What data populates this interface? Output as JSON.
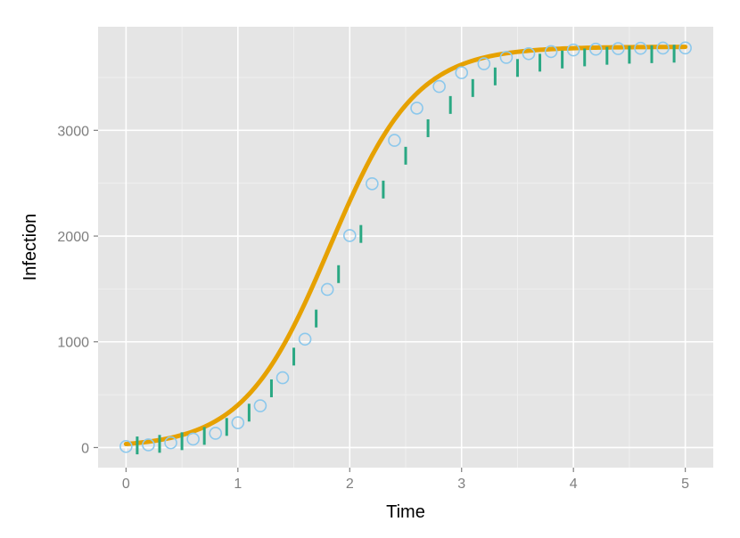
{
  "chart_data": {
    "type": "scatter",
    "title": "",
    "xlabel": "Time",
    "ylabel": "Infection",
    "xlim": [
      -0.25,
      5.25
    ],
    "ylim": [
      -190,
      3980
    ],
    "x_ticks": [
      0,
      1,
      2,
      3,
      4,
      5
    ],
    "x_tick_labels": [
      "0",
      "1",
      "2",
      "3",
      "4",
      "5"
    ],
    "y_ticks": [
      0,
      1000,
      2000,
      3000
    ],
    "y_tick_labels": [
      "0",
      "1000",
      "2000",
      "3000"
    ],
    "grid": true,
    "legend": "none",
    "series": [
      {
        "kind": "circles",
        "color": "#8cc8ec",
        "x": [
          0,
          0.2,
          0.4,
          0.6,
          0.8,
          1.0,
          1.2,
          1.4,
          1.6,
          1.8,
          2.0,
          2.2,
          2.4,
          2.6,
          2.8,
          3.0,
          3.2,
          3.4,
          3.6,
          3.8,
          4.0,
          4.2,
          4.4,
          4.6,
          4.8,
          5.0
        ],
        "y": [
          10,
          25,
          45,
          80,
          135,
          235,
          395,
          660,
          1025,
          1495,
          2005,
          2495,
          2905,
          3210,
          3415,
          3545,
          3630,
          3690,
          3725,
          3745,
          3760,
          3768,
          3773,
          3776,
          3778,
          3779
        ]
      },
      {
        "kind": "vertical-ticks",
        "color": "#2aa883",
        "x": [
          0.1,
          0.3,
          0.5,
          0.7,
          0.9,
          1.1,
          1.3,
          1.5,
          1.7,
          1.9,
          2.1,
          2.3,
          2.5,
          2.7,
          2.9,
          3.1,
          3.3,
          3.5,
          3.7,
          3.9,
          4.1,
          4.3,
          4.5,
          4.7,
          4.9
        ],
        "y": [
          20,
          35,
          60,
          110,
          195,
          330,
          560,
          860,
          1220,
          1640,
          2020,
          2440,
          2760,
          3020,
          3240,
          3400,
          3510,
          3590,
          3640,
          3670,
          3690,
          3705,
          3715,
          3720,
          3725
        ]
      },
      {
        "kind": "curve",
        "color": "#e6a100",
        "K": 3790,
        "r": 2.6,
        "t0": 1.82,
        "x_range": [
          0,
          5
        ]
      }
    ]
  }
}
